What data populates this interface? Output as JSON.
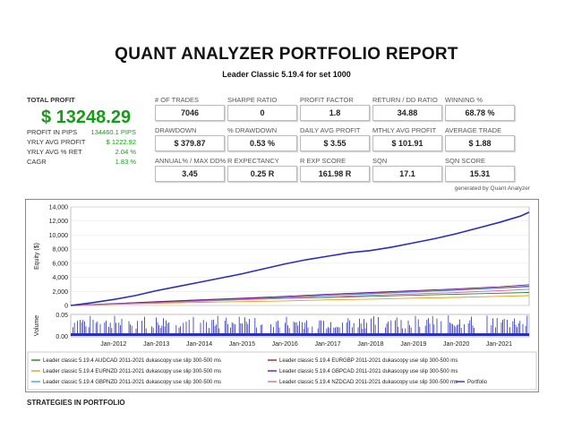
{
  "report": {
    "title": "QUANT ANALYZER PORTFOLIO REPORT",
    "subtitle": "Leader Classic 5.19.4 for set 1000"
  },
  "summary": {
    "total_profit_label": "TOTAL PROFIT",
    "total_profit_value": "$ 13248.29",
    "rows": [
      {
        "label": "PROFIT IN PIPS",
        "value": "134460.1 PIPS"
      },
      {
        "label": "YRLY AVG PROFIT",
        "value": "$ 1222.92"
      },
      {
        "label": "YRLY AVG % RET",
        "value": "2.04 %"
      },
      {
        "label": "CAGR",
        "value": "1.83 %"
      }
    ]
  },
  "metrics": [
    {
      "label": "# OF TRADES",
      "value": "7046"
    },
    {
      "label": "SHARPE RATIO",
      "value": "0"
    },
    {
      "label": "PROFIT FACTOR",
      "value": "1.8"
    },
    {
      "label": "RETURN / DD RATIO",
      "value": "34.88"
    },
    {
      "label": "WINNING %",
      "value": "68.78 %"
    },
    {
      "label": "DRAWDOWN",
      "value": "$ 379.87"
    },
    {
      "label": "% DRAWDOWN",
      "value": "0.53 %"
    },
    {
      "label": "DAILY AVG PROFIT",
      "value": "$ 3.55"
    },
    {
      "label": "MTHLY AVG PROFIT",
      "value": "$ 101.91"
    },
    {
      "label": "AVERAGE TRADE",
      "value": "$ 1.88"
    },
    {
      "label": "ANNUAL% / MAX DD%",
      "value": "3.45"
    },
    {
      "label": "R EXPECTANCY",
      "value": "0.25 R"
    },
    {
      "label": "R EXP SCORE",
      "value": "161.98 R"
    },
    {
      "label": "SQN",
      "value": "17.1"
    },
    {
      "label": "SQN SCORE",
      "value": "15.31"
    }
  ],
  "generated_by": "generated by Quant Analyzer",
  "footer_heading": "STRATEGIES IN PORTFOLIO",
  "chart_data": {
    "type": "line",
    "ylabel": "Equity ($)",
    "volume_label": "Volume",
    "ylim": [
      0,
      14000
    ],
    "yticks": [
      "14,000",
      "12,000",
      "10,000",
      "8,000",
      "6,000",
      "4,000",
      "2,000",
      "0"
    ],
    "volume_ticks": [
      "0.05",
      "0.00"
    ],
    "xticks": [
      "Jan-2012",
      "Jan-2013",
      "Jan-2014",
      "Jan-2015",
      "Jan-2016",
      "Jan-2017",
      "Jan-2018",
      "Jan-2019",
      "Jan-2020",
      "Jan-2021"
    ],
    "x_range": [
      2011.0,
      2021.7
    ],
    "series": [
      {
        "name": "Leader classic 5.19.4 AUDCAD 2011-2021 dukascopy use slip 300-500 ms",
        "color": "#2e7d32",
        "x": [
          2011.0,
          2012.0,
          2013.0,
          2014.0,
          2015.0,
          2016.0,
          2017.0,
          2018.0,
          2019.0,
          2020.0,
          2021.0,
          2021.7
        ],
        "y": [
          0,
          250,
          500,
          700,
          850,
          1000,
          1150,
          1300,
          1450,
          1600,
          1750,
          1850
        ]
      },
      {
        "name": "Leader classic 5.19.4 EURGBP 2011-2021 dukascopy use slip 300-500 ms",
        "color": "#8b2e2e",
        "x": [
          2011.0,
          2012.0,
          2013.0,
          2014.0,
          2015.0,
          2016.0,
          2017.0,
          2018.0,
          2019.0,
          2020.0,
          2021.0,
          2021.7
        ],
        "y": [
          0,
          200,
          450,
          700,
          950,
          1150,
          1450,
          1700,
          1950,
          2200,
          2500,
          2750
        ]
      },
      {
        "name": "Leader classic 5.19.4 EURNZD 2011-2021 dukascopy use slip 300-500 ms",
        "color": "#e0a020",
        "x": [
          2011.0,
          2012.0,
          2013.0,
          2014.0,
          2015.0,
          2016.0,
          2017.0,
          2018.0,
          2019.0,
          2020.0,
          2021.0,
          2021.7
        ],
        "y": [
          0,
          150,
          300,
          450,
          550,
          650,
          800,
          900,
          1050,
          1150,
          1300,
          1400
        ]
      },
      {
        "name": "Leader classic 5.19.4 GBPCAD 2011-2021 dukascopy use slip 300-500 ms",
        "color": "#6a1b9a",
        "x": [
          2011.0,
          2012.0,
          2013.0,
          2014.0,
          2015.0,
          2016.0,
          2017.0,
          2018.0,
          2019.0,
          2020.0,
          2021.0,
          2021.7
        ],
        "y": [
          0,
          250,
          550,
          800,
          1050,
          1300,
          1600,
          1850,
          2100,
          2350,
          2650,
          2950
        ]
      },
      {
        "name": "Leader classic 5.19.4 GBPNZD 2011-2021 dukascopy use slip 300-500 ms",
        "color": "#4fa3d8",
        "x": [
          2011.0,
          2012.0,
          2013.0,
          2014.0,
          2015.0,
          2016.0,
          2017.0,
          2018.0,
          2019.0,
          2020.0,
          2021.0,
          2021.7
        ],
        "y": [
          0,
          200,
          400,
          650,
          900,
          1100,
          1400,
          1650,
          1900,
          2150,
          2450,
          2650
        ]
      },
      {
        "name": "Leader classic 5.19.4 NZDCAD 2011-2021 dukascopy use slip 300-500 ms",
        "color": "#d36fa0",
        "x": [
          2011.0,
          2012.0,
          2013.0,
          2014.0,
          2015.0,
          2016.0,
          2017.0,
          2018.0,
          2019.0,
          2020.0,
          2021.0,
          2021.7
        ],
        "y": [
          0,
          200,
          400,
          600,
          800,
          1000,
          1200,
          1450,
          1650,
          1850,
          2100,
          2300
        ]
      },
      {
        "name": "Portfolio",
        "color": "#2b2fb5",
        "x": [
          2011.0,
          2011.5,
          2012.0,
          2012.5,
          2013.0,
          2013.5,
          2014.0,
          2014.5,
          2015.0,
          2015.5,
          2016.0,
          2016.5,
          2017.0,
          2017.5,
          2018.0,
          2018.5,
          2019.0,
          2019.5,
          2020.0,
          2020.5,
          2021.0,
          2021.5,
          2021.7
        ],
        "y": [
          0,
          400,
          850,
          1400,
          2100,
          2700,
          3300,
          3900,
          4500,
          5200,
          5900,
          6500,
          7000,
          7500,
          7800,
          8300,
          8900,
          9500,
          10200,
          11000,
          11800,
          12700,
          13250
        ]
      }
    ]
  }
}
